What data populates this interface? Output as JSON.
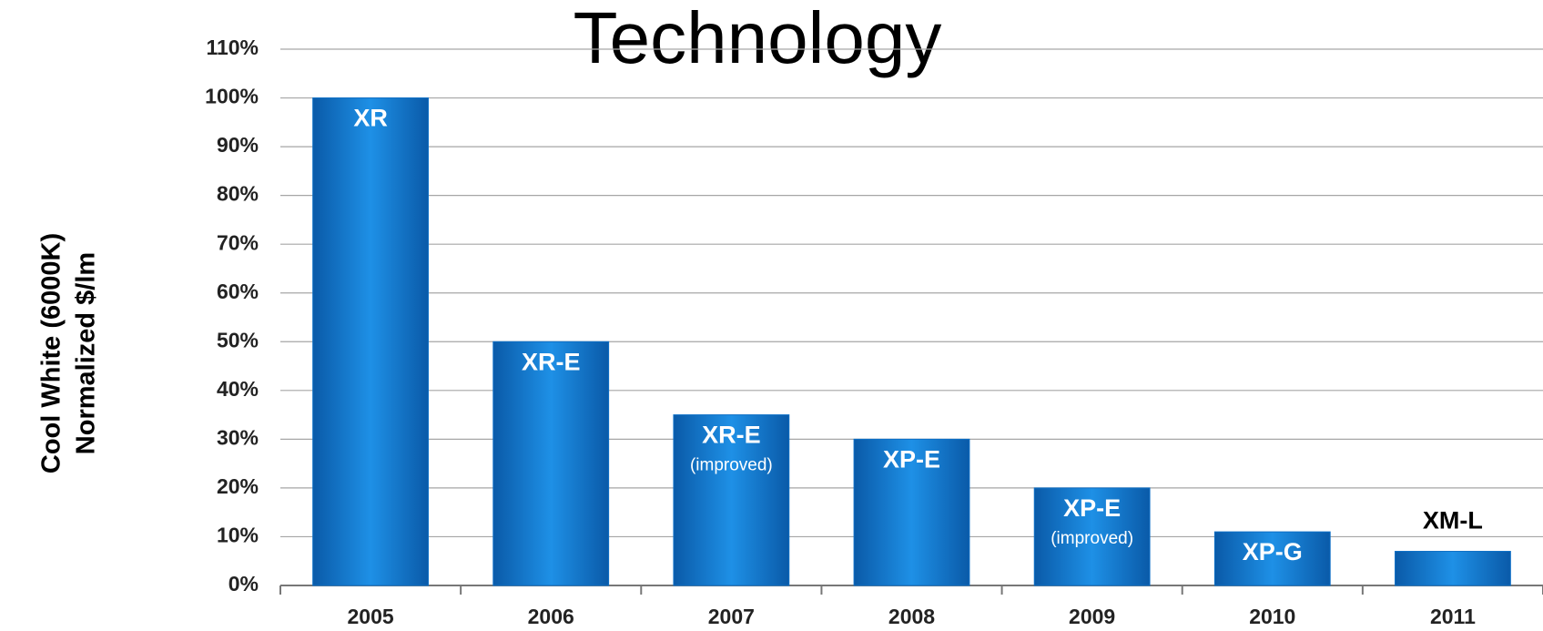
{
  "chart_data": {
    "type": "bar",
    "title": "Technology",
    "y_label": [
      "Cool White (6000K)",
      "Normalized $/lm"
    ],
    "categories": [
      "2005",
      "2006",
      "2007",
      "2008",
      "2009",
      "2010",
      "2011"
    ],
    "values": [
      100,
      50,
      35,
      30,
      20,
      11,
      7
    ],
    "bar_labels": [
      "XR",
      "XR-E",
      "XR-E",
      "XP-E",
      "XP-E",
      "XP-G",
      "XM-L"
    ],
    "bar_sublabels": [
      null,
      null,
      "(improved)",
      null,
      "(improved)",
      null,
      null
    ],
    "color": "#0d6fc6",
    "ylim": [
      0,
      110
    ],
    "yticks": [
      {
        "value": 0,
        "label": "0%"
      },
      {
        "value": 10,
        "label": "10%"
      },
      {
        "value": 20,
        "label": "20%"
      },
      {
        "value": 30,
        "label": "30%"
      },
      {
        "value": 40,
        "label": "40%"
      },
      {
        "value": 50,
        "label": "50%"
      },
      {
        "value": 60,
        "label": "60%"
      },
      {
        "value": 70,
        "label": "70%"
      },
      {
        "value": 80,
        "label": "80%"
      },
      {
        "value": 90,
        "label": "90%"
      },
      {
        "value": 100,
        "label": "100%"
      },
      {
        "value": 110,
        "label": "110%"
      }
    ],
    "grid": true
  }
}
